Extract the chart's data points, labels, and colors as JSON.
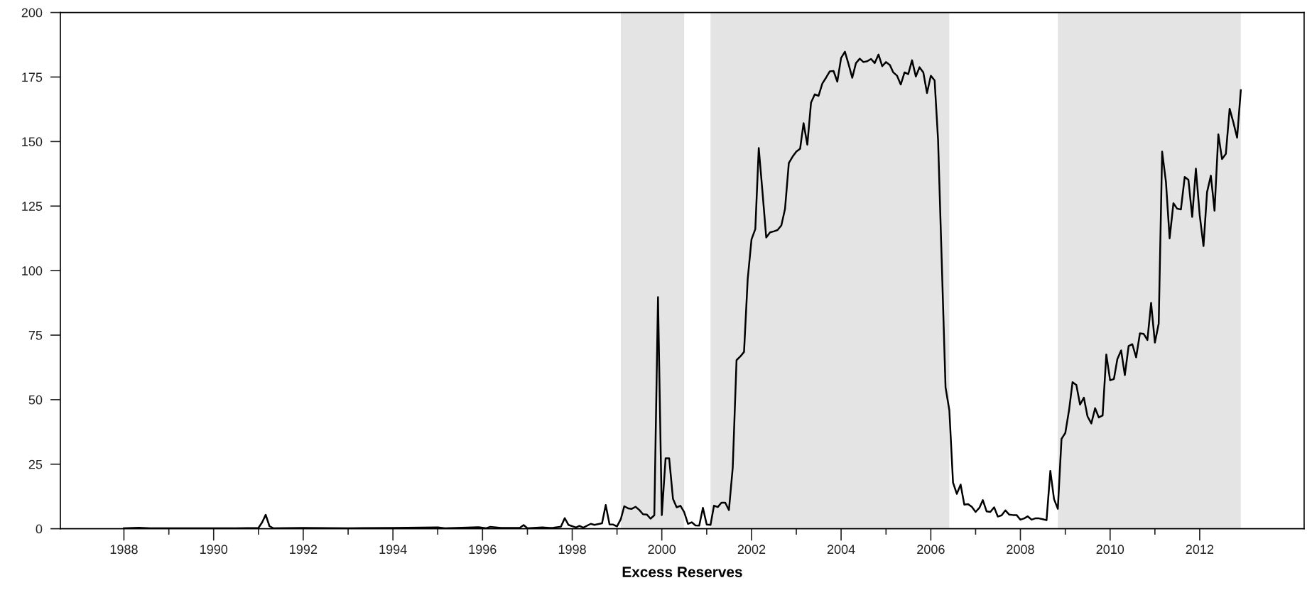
{
  "chart_data": {
    "type": "line",
    "xlabel": "Excess Reserves",
    "xlim": [
      "1986-08",
      "2014-05"
    ],
    "ylim": [
      0,
      200
    ],
    "xticks": [
      "1988",
      {
        "value": "1989",
        "label": null
      },
      "1990",
      {
        "value": "1991",
        "label": null
      },
      "1992",
      {
        "value": "1993",
        "label": null
      },
      "1994",
      {
        "value": "1995",
        "label": null
      },
      "1996",
      {
        "value": "1997",
        "label": null
      },
      "1998",
      {
        "value": "1999",
        "label": null
      },
      "2000",
      {
        "value": "2001",
        "label": null
      },
      "2002",
      {
        "value": "2003",
        "label": null
      },
      "2004",
      {
        "value": "2005",
        "label": null
      },
      "2006",
      {
        "value": "2007",
        "label": null
      },
      "2008",
      {
        "value": "2009",
        "label": null
      },
      "2010",
      {
        "value": "2011",
        "label": null
      },
      "2012"
    ],
    "yticks": [
      0,
      25,
      50,
      75,
      100,
      125,
      150,
      175,
      200
    ],
    "grid": false,
    "legend": false,
    "marker": "none",
    "line_style": "solid",
    "bands": [
      {
        "axis": "x",
        "from": "1999-02",
        "to": "2000-07",
        "color": "#e4e4e4"
      },
      {
        "axis": "x",
        "from": "2001-02",
        "to": "2006-06",
        "color": "#e4e4e4"
      },
      {
        "axis": "x",
        "from": "2008-11",
        "to": "2012-12",
        "color": "#e4e4e4"
      }
    ],
    "series": [
      {
        "color": "#000000",
        "x": [
          "1988-01",
          "1988-05",
          "1988-08",
          "1989-07",
          "1990-07",
          "1991-01",
          "1991-02",
          "1991-03",
          "1991-04",
          "1991-05",
          "1992-01",
          "1993-01",
          "1994-01",
          "1995-01",
          "1995-03",
          "1995-12",
          "1996-02",
          "1996-03",
          "1996-06",
          "1996-11",
          "1996-12",
          "1997-01",
          "1997-05",
          "1997-07",
          "1997-08",
          "1997-10",
          "1997-11",
          "1997-12",
          "1998-02",
          "1998-03",
          "1998-04",
          "1998-06",
          "1998-07",
          "1998-09",
          "1998-10",
          "1998-11",
          "1998-12",
          "1999-01",
          "1999-02",
          "1999-03",
          "1999-04",
          "1999-05",
          "1999-06",
          "1999-07",
          "1999-08",
          "1999-09",
          "1999-10",
          "1999-11",
          "1999-12",
          "2000-01",
          "2000-02",
          "2000-03",
          "2000-04",
          "2000-05",
          "2000-06",
          "2000-07",
          "2000-08",
          "2000-09",
          "2000-10",
          "2000-11",
          "2000-12",
          "2001-01",
          "2001-02",
          "2001-03",
          "2001-04",
          "2001-05",
          "2001-06",
          "2001-07",
          "2001-08",
          "2001-09",
          "2001-10",
          "2001-11",
          "2001-12",
          "2002-01",
          "2002-02",
          "2002-03",
          "2002-04",
          "2002-05",
          "2002-06",
          "2002-07",
          "2002-08",
          "2002-09",
          "2002-10",
          "2002-11",
          "2002-12",
          "2003-01",
          "2003-02",
          "2003-03",
          "2003-04",
          "2003-05",
          "2003-06",
          "2003-07",
          "2003-08",
          "2003-09",
          "2003-10",
          "2003-11",
          "2003-12",
          "2004-01",
          "2004-02",
          "2004-03",
          "2004-04",
          "2004-05",
          "2004-06",
          "2004-07",
          "2004-08",
          "2004-09",
          "2004-10",
          "2004-11",
          "2004-12",
          "2005-01",
          "2005-02",
          "2005-03",
          "2005-04",
          "2005-05",
          "2005-06",
          "2005-07",
          "2005-08",
          "2005-09",
          "2005-10",
          "2005-11",
          "2005-12",
          "2006-01",
          "2006-02",
          "2006-03",
          "2006-05",
          "2006-06",
          "2006-07",
          "2006-08",
          "2006-09",
          "2006-10",
          "2006-11",
          "2006-12",
          "2007-01",
          "2007-02",
          "2007-03",
          "2007-04",
          "2007-05",
          "2007-06",
          "2007-07",
          "2007-08",
          "2007-09",
          "2007-10",
          "2007-11",
          "2007-12",
          "2008-01",
          "2008-02",
          "2008-03",
          "2008-04",
          "2008-05",
          "2008-06",
          "2008-07",
          "2008-08",
          "2008-09",
          "2008-10",
          "2008-11",
          "2008-12",
          "2009-01",
          "2009-02",
          "2009-03",
          "2009-04",
          "2009-05",
          "2009-06",
          "2009-07",
          "2009-08",
          "2009-09",
          "2009-10",
          "2009-11",
          "2009-12",
          "2010-01",
          "2010-02",
          "2010-03",
          "2010-04",
          "2010-05",
          "2010-06",
          "2010-07",
          "2010-08",
          "2010-09",
          "2010-10",
          "2010-11",
          "2010-12",
          "2011-01",
          "2011-02",
          "2011-03",
          "2011-04",
          "2011-05",
          "2011-06",
          "2011-07",
          "2011-08",
          "2011-09",
          "2011-10",
          "2011-11",
          "2011-12",
          "2012-01",
          "2012-02",
          "2012-03",
          "2012-04",
          "2012-05",
          "2012-06",
          "2012-07",
          "2012-08",
          "2012-09",
          "2012-10",
          "2012-11",
          "2012-12"
        ],
        "values": [
          0.2,
          0.4,
          0.2,
          0.2,
          0.2,
          0.3,
          2.5,
          5.4,
          1.0,
          0.2,
          0.3,
          0.2,
          0.3,
          0.5,
          0.2,
          0.6,
          0.2,
          0.7,
          0.3,
          0.4,
          1.4,
          0.2,
          0.5,
          0.3,
          0.4,
          0.8,
          4.1,
          1.5,
          0.5,
          1.1,
          0.4,
          1.9,
          1.5,
          2.1,
          9.2,
          1.7,
          1.6,
          0.9,
          3.7,
          8.7,
          7.9,
          7.7,
          8.5,
          7.3,
          5.6,
          5.5,
          3.9,
          5.2,
          89.7,
          5.3,
          27.3,
          27.3,
          11.6,
          8.3,
          8.9,
          6.5,
          1.9,
          2.5,
          1.3,
          1.2,
          8.1,
          1.6,
          1.5,
          8.9,
          8.4,
          10.1,
          10.1,
          7.2,
          23.7,
          65.3,
          66.7,
          68.5,
          96.8,
          112.1,
          116.1,
          147.5,
          130.1,
          112.8,
          114.8,
          115.2,
          115.7,
          117.5,
          123.9,
          141.7,
          144.1,
          146.1,
          147.2,
          157.1,
          148.8,
          165.1,
          168.3,
          167.7,
          172.5,
          174.8,
          177.2,
          177.3,
          173.2,
          182.4,
          184.8,
          180.1,
          174.7,
          180.4,
          182.1,
          180.8,
          181.1,
          182.0,
          180.4,
          183.7,
          179.2,
          180.8,
          179.7,
          176.8,
          175.5,
          172.1,
          176.8,
          176.1,
          181.5,
          175.2,
          178.8,
          176.8,
          168.8,
          175.5,
          173.7,
          150.8,
          54.8,
          45.9,
          17.9,
          13.5,
          17.1,
          9.3,
          9.5,
          8.5,
          6.5,
          8.1,
          11.1,
          6.7,
          6.5,
          8.3,
          4.7,
          5.2,
          7.1,
          5.5,
          5.3,
          5.3,
          3.5,
          4.0,
          4.8,
          3.5,
          4.0,
          4.0,
          3.7,
          3.3,
          22.4,
          11.5,
          7.7,
          34.8,
          37.1,
          46.1,
          56.8,
          55.7,
          48.1,
          50.8,
          43.5,
          40.8,
          46.7,
          43.1,
          43.9,
          67.5,
          57.5,
          58.0,
          65.7,
          69.1,
          59.5,
          70.8,
          71.5,
          66.4,
          75.7,
          75.5,
          73.1,
          87.5,
          72.1,
          79.5,
          146.1,
          134.4,
          112.5,
          126.1,
          124.0,
          123.7,
          136.3,
          135.2,
          120.8,
          139.5,
          121.5,
          109.5,
          130.4,
          136.8,
          123.2,
          152.8,
          143.2,
          145.2,
          162.7,
          157.5,
          151.5,
          169.9
        ]
      }
    ]
  }
}
